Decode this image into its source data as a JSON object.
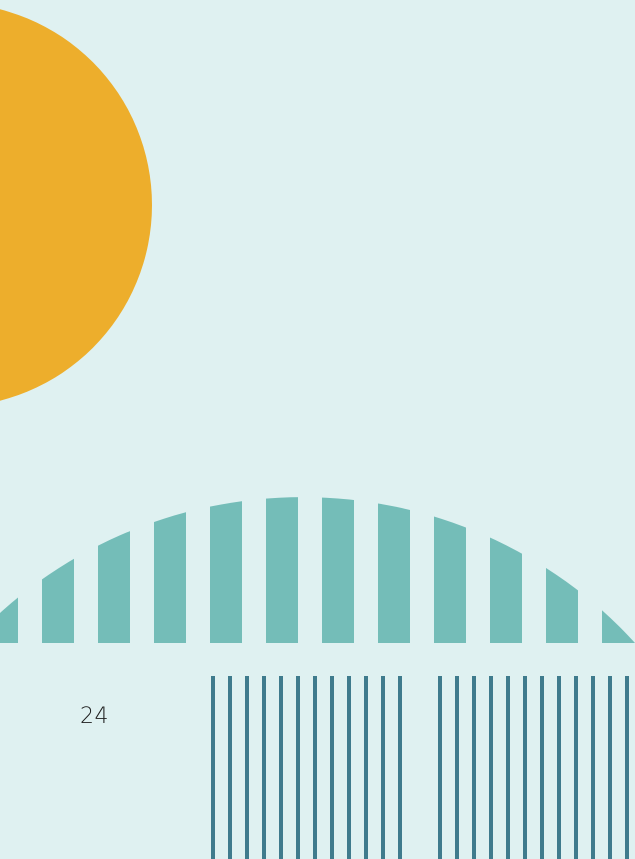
{
  "page": {
    "number": "24"
  },
  "colors": {
    "background": "#dff1f1",
    "sun": "#edae2c",
    "teal_stripes": "#74bdb8",
    "barcode_lines": "#3f7b8d",
    "text": "#1c1c1c"
  },
  "decorations": {
    "sun": "orange-circle",
    "arch": "teal-striped-semicircle",
    "barcode": "vertical-line-pattern"
  }
}
